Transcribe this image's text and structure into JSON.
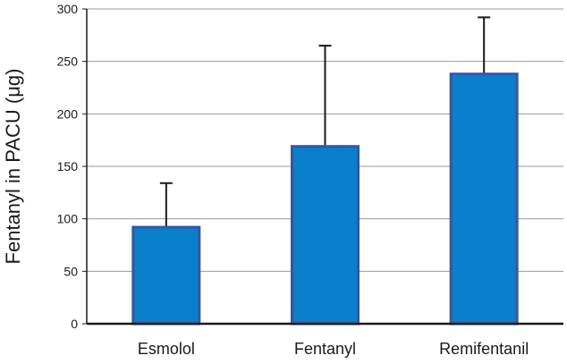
{
  "chart_data": {
    "type": "bar",
    "title": "",
    "xlabel": "",
    "ylabel": "Fentanyl in PACU (μg)",
    "categories": [
      "Esmolol",
      "Fentanyl",
      "Remifentanil"
    ],
    "values": [
      92,
      169,
      238
    ],
    "error_upper": [
      134,
      265,
      292
    ],
    "ylim": [
      0,
      300
    ],
    "yticks": [
      0,
      50,
      100,
      150,
      200,
      250,
      300
    ],
    "grid": true,
    "legend": "none",
    "colors": {
      "bar_fill": "#0a7fcc",
      "bar_edge": "#3a55a0",
      "grid": "#9a9a9a",
      "axis": "#1a1a1a",
      "error_bar": "#1a1a1a"
    }
  }
}
